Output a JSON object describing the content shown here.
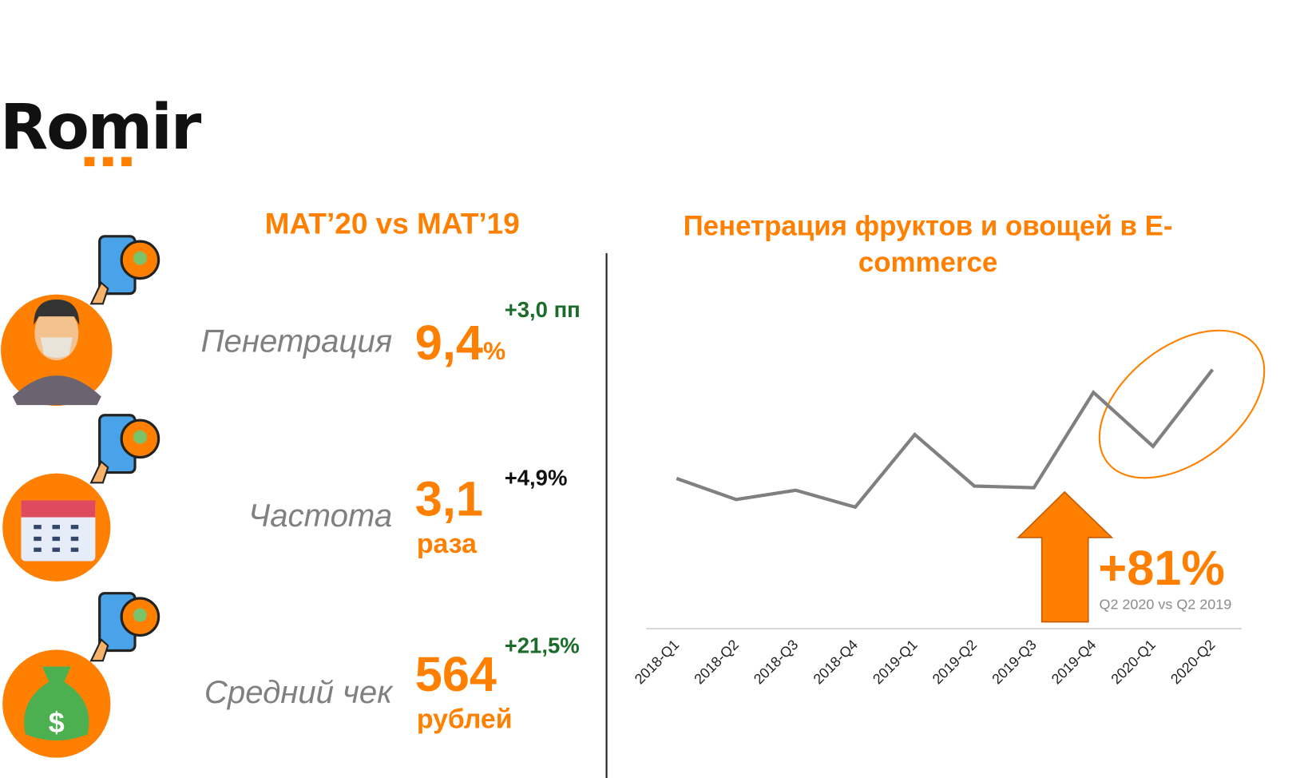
{
  "logo": {
    "text": "Romir",
    "accent": "#ff8000"
  },
  "left": {
    "title": "MAT’20 vs MAT’19",
    "metrics": [
      {
        "label": "Пенетрация",
        "value": "9,4",
        "unit": "%",
        "delta": "+3,0 пп",
        "delta_color": "#1b6b2a",
        "icon": "person-mask-icon"
      },
      {
        "label": "Частота",
        "value": "3,1",
        "unit": "раза",
        "delta": "+4,9%",
        "delta_color": "#111111",
        "icon": "calendar-icon"
      },
      {
        "label": "Средний чек",
        "value": "564",
        "unit": "рублей",
        "delta": "+21,5%",
        "delta_color": "#1b6b2a",
        "icon": "money-bag-icon"
      }
    ]
  },
  "right": {
    "title": "Пенетрация фруктов и овощей в E-commerce",
    "callout_value": "+81%",
    "callout_label": "Q2 2020 vs Q2 2019"
  },
  "chart_data": {
    "type": "line",
    "title": "Пенетрация фруктов и овощей в E-commerce",
    "categories": [
      "2018-Q1",
      "2018-Q2",
      "2018-Q3",
      "2018-Q4",
      "2019-Q1",
      "2019-Q2",
      "2019-Q3",
      "2019-Q4",
      "2020-Q1",
      "2020-Q2"
    ],
    "values": [
      178,
      153,
      164,
      144,
      230,
      169,
      167,
      280,
      216,
      307
    ],
    "ylim": [
      0,
      330
    ],
    "grid": false,
    "line_color": "#808080",
    "annotation": "+81%",
    "annotation_label": "Q2 2020 vs Q2 2019",
    "highlight_color": "#ff8000"
  }
}
